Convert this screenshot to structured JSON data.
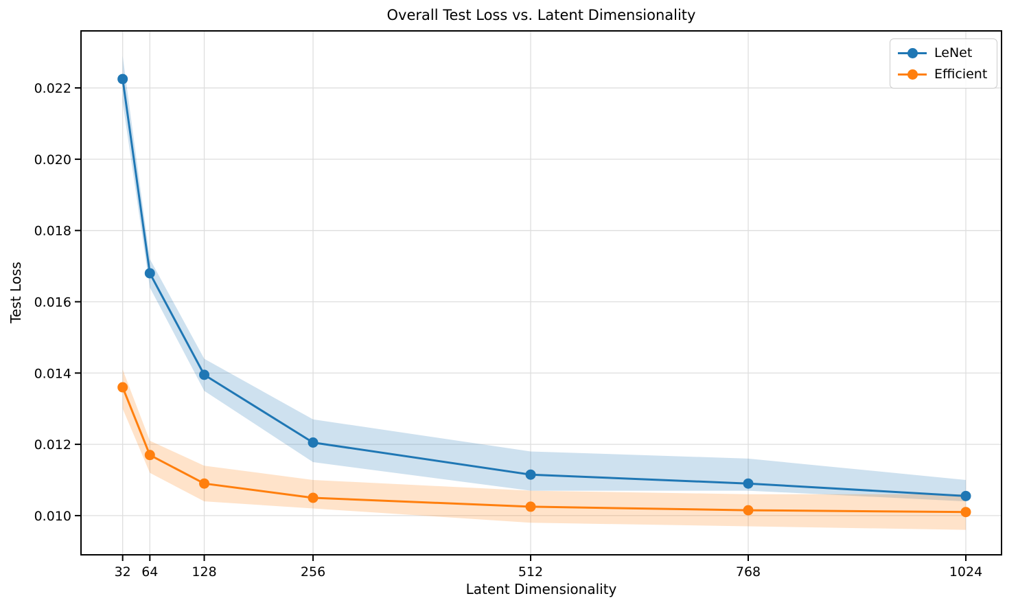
{
  "figure": {
    "background": "#ffffff",
    "spine_color": "#000000",
    "grid_color": "#dedede"
  },
  "chart_data": {
    "type": "line",
    "title": "Overall Test Loss vs. Latent Dimensionality",
    "xlabel": "Latent Dimensionality",
    "ylabel": "Test Loss",
    "x": [
      32,
      64,
      128,
      256,
      512,
      768,
      1024
    ],
    "xticks": [
      32,
      64,
      128,
      256,
      512,
      768,
      1024
    ],
    "yticks": [
      0.01,
      0.012,
      0.014,
      0.016,
      0.018,
      0.02,
      0.022
    ],
    "xlim": [
      -17,
      1066
    ],
    "ylim": [
      0.0089,
      0.0236
    ],
    "grid": true,
    "legend_position": "upper right",
    "series": [
      {
        "name": "LeNet",
        "color": "#1f77b4",
        "values": [
          0.02225,
          0.0168,
          0.01395,
          0.01205,
          0.01115,
          0.0109,
          0.01055
        ],
        "band_upper": [
          0.0229,
          0.0172,
          0.0144,
          0.0127,
          0.0118,
          0.0116,
          0.011
        ],
        "band_lower": [
          0.0216,
          0.0164,
          0.0135,
          0.0115,
          0.0107,
          0.0107,
          0.0104
        ]
      },
      {
        "name": "Efficient",
        "color": "#ff7f0e",
        "values": [
          0.0136,
          0.0117,
          0.0109,
          0.0105,
          0.01025,
          0.01015,
          0.0101
        ],
        "band_upper": [
          0.0141,
          0.0121,
          0.0114,
          0.011,
          0.0107,
          0.0106,
          0.0106
        ],
        "band_lower": [
          0.013,
          0.0112,
          0.0104,
          0.0102,
          0.0098,
          0.0097,
          0.0096
        ]
      }
    ]
  }
}
